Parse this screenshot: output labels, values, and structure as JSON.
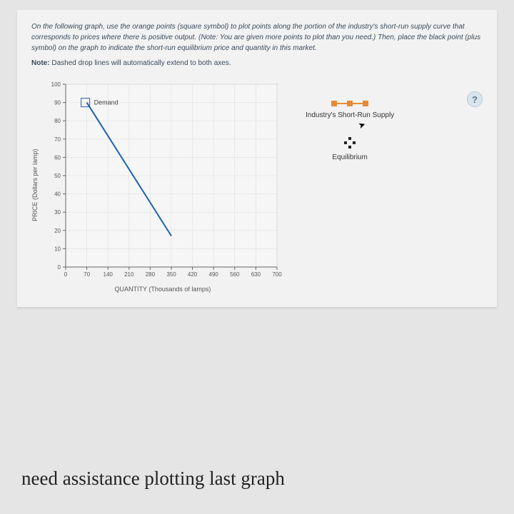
{
  "instructions": {
    "line": "On the following graph, use the orange points (square symbol) to plot points along the portion of the industry's short-run supply curve that corresponds to prices where there is positive output. (Note: You are given more points to plot than you need.) Then, place the black point (plus symbol) on the graph to indicate the short-run equilibrium price and quantity in this market.",
    "note_label": "Note:",
    "note_text": "Dashed drop lines will automatically extend to both axes."
  },
  "chart": {
    "type": "line",
    "xlim": [
      0,
      700
    ],
    "ylim": [
      0,
      100
    ],
    "xticks": [
      0,
      70,
      140,
      210,
      280,
      350,
      420,
      490,
      560,
      630,
      700
    ],
    "yticks": [
      0,
      10,
      20,
      30,
      40,
      50,
      60,
      70,
      80,
      90,
      100
    ],
    "xlabel": "QUANTITY (Thousands of lamps)",
    "ylabel": "PRICE (Dollars per lamp)",
    "background_color": "#f6f6f6",
    "grid_color": "#dcdcdc",
    "axis_color": "#666",
    "demand": {
      "label": "Demand",
      "color": "#1e5fb3",
      "points": [
        [
          70,
          90
        ],
        [
          350,
          17
        ]
      ],
      "line_width": 2
    }
  },
  "legend": {
    "supply": {
      "label": "Industry's Short-Run Supply",
      "marker": "square-line",
      "color": "#e8893a"
    },
    "equilibrium": {
      "label": "Equilibrium",
      "marker": "plus",
      "color": "#222"
    }
  },
  "help_glyph": "?",
  "bottom_text": "need assistance plotting last graph"
}
